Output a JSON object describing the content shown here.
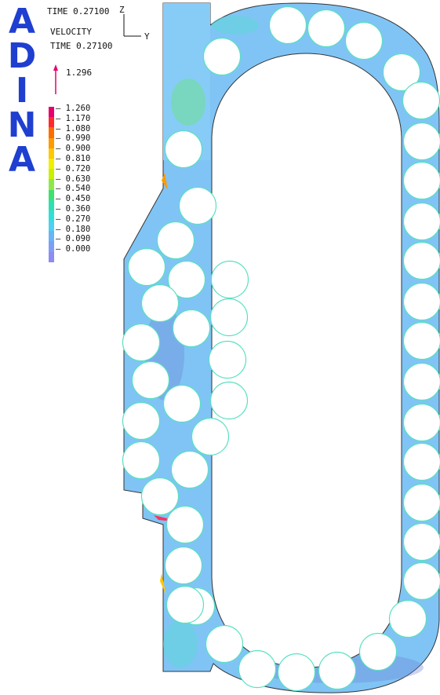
{
  "logo": {
    "letters": [
      "A",
      "D",
      "I",
      "N",
      "A"
    ],
    "color": "#1f3fd0"
  },
  "header": {
    "time_line": "TIME 0.27100",
    "axis_z": "Z",
    "axis_y": "Y",
    "quantity": "VELOCITY",
    "quantity_time": "TIME 0.27100",
    "vector_max": "1.296"
  },
  "legend": {
    "values": [
      "1.260",
      "1.170",
      "1.080",
      "0.990",
      "0.900",
      "0.810",
      "0.720",
      "0.630",
      "0.540",
      "0.450",
      "0.360",
      "0.270",
      "0.180",
      "0.090",
      "0.000"
    ],
    "colors": [
      "#e8006a",
      "#ff2a2a",
      "#ff6a00",
      "#ff9a00",
      "#ffc800",
      "#f2ee00",
      "#c8f000",
      "#8ee84a",
      "#3ee070",
      "#2ee0b0",
      "#30e0d8",
      "#4fd0f0",
      "#6ab4f5",
      "#7e9ef5",
      "#8c8cf2"
    ]
  },
  "field_colors": {
    "base": "#80c4f5",
    "dark": "#6c84d8",
    "mid": "#5cd8d8",
    "green": "#58e070",
    "hot": "#ff3060",
    "outline": "#333333"
  }
}
